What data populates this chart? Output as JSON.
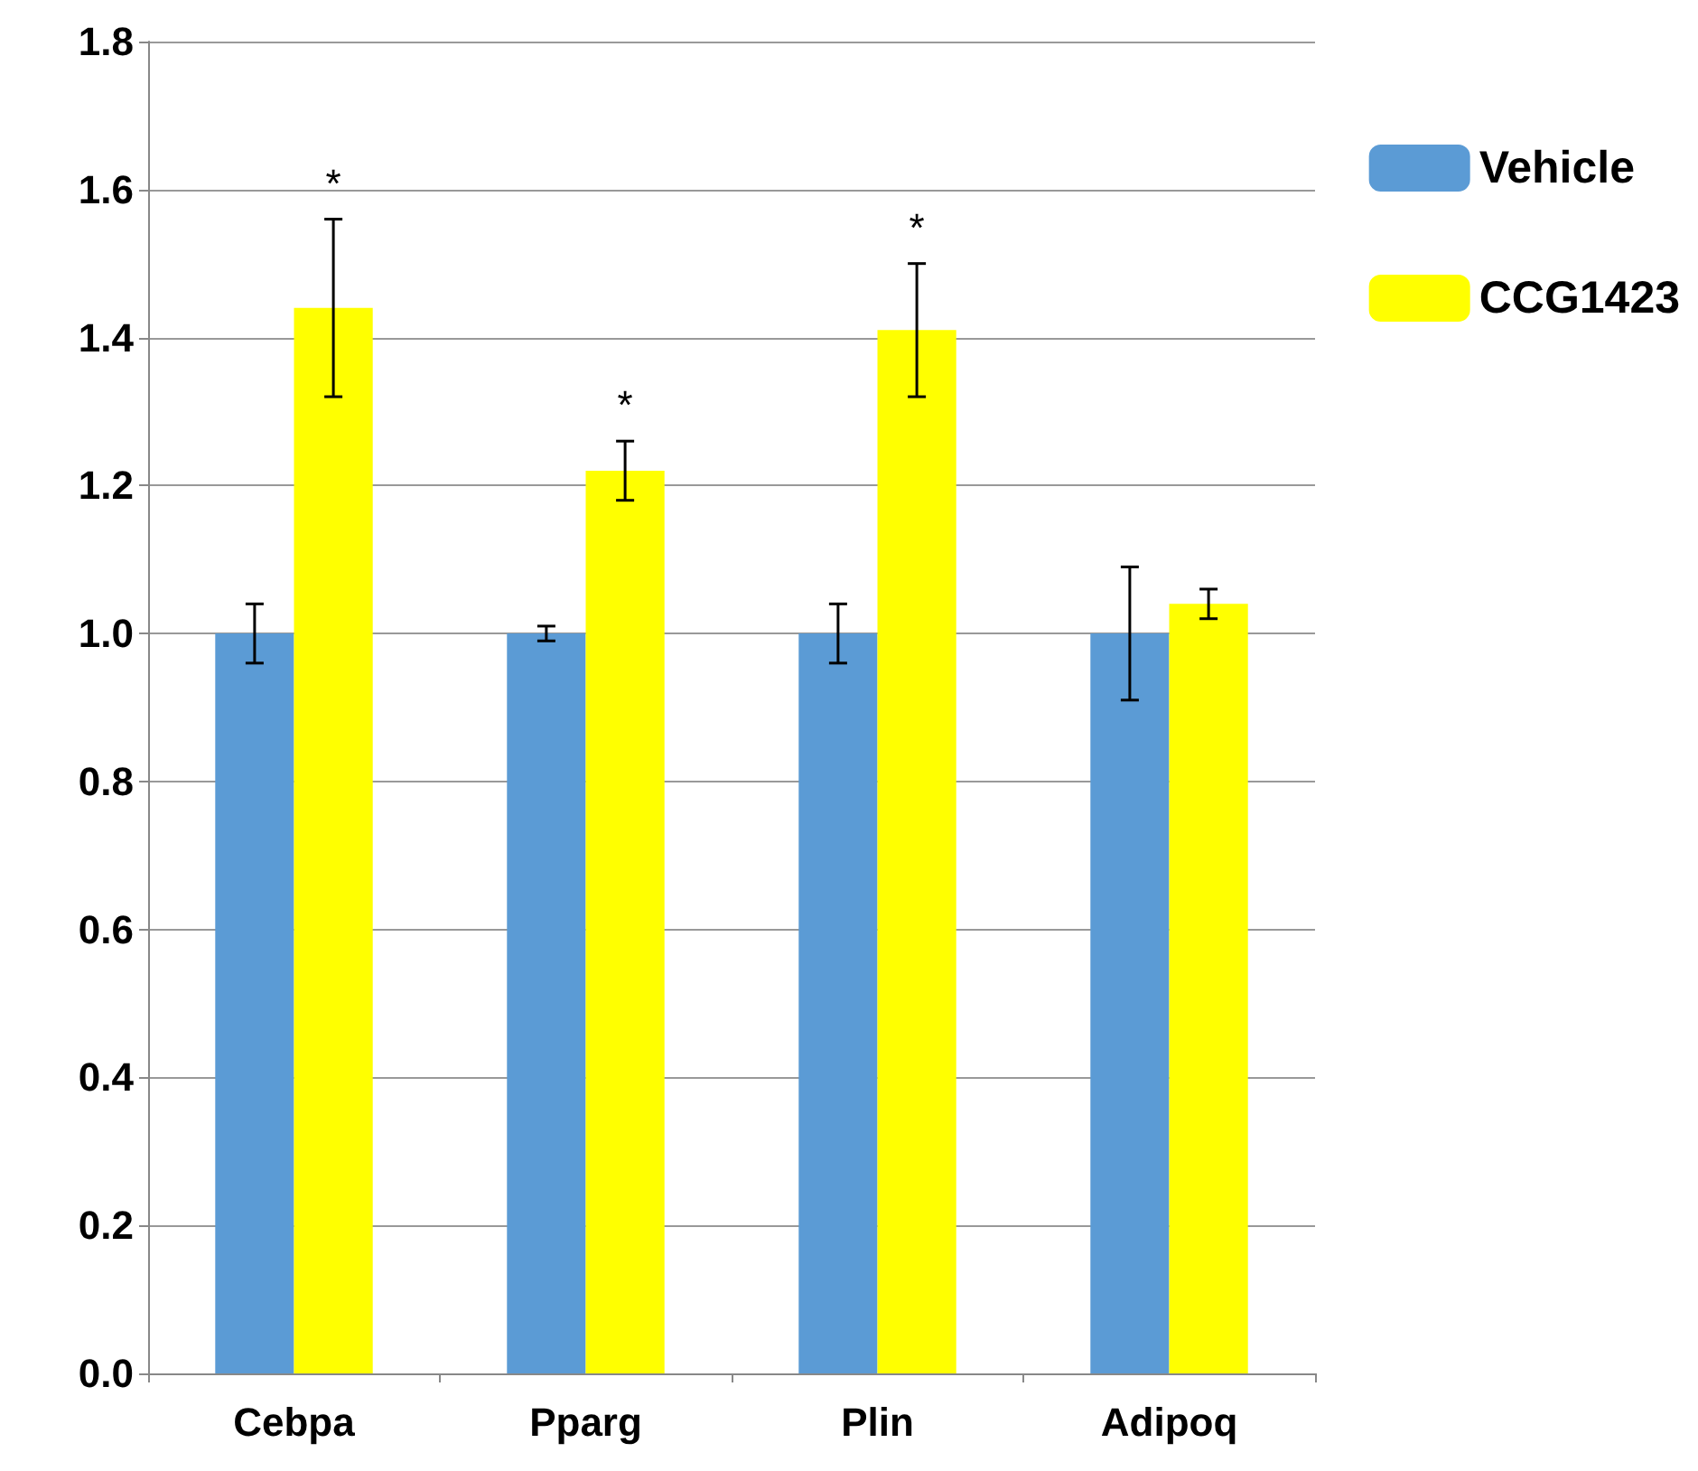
{
  "chart_data": {
    "type": "bar",
    "categories": [
      "Cebpa",
      "Pparg",
      "Plin",
      "Adipoq"
    ],
    "series": [
      {
        "name": "Vehicle",
        "color": "#5b9bd5",
        "values": [
          1.0,
          1.0,
          1.0,
          1.0
        ],
        "errors": [
          0.04,
          0.01,
          0.04,
          0.09
        ]
      },
      {
        "name": "CCG1423",
        "color": "#ffff00",
        "values": [
          1.44,
          1.22,
          1.41,
          1.04
        ],
        "errors": [
          0.12,
          0.04,
          0.09,
          0.02
        ]
      }
    ],
    "annotations": [
      {
        "text": "*",
        "x": "Cebpa",
        "y": 1.44
      },
      {
        "text": "*",
        "x": "Pparg",
        "y": 1.22
      },
      {
        "text": "*",
        "x": "Plin",
        "y": 1.41
      }
    ],
    "ylim": [
      0,
      1.8
    ],
    "yticks": [
      {
        "value": 0,
        "label": "0.0"
      },
      0.2,
      0.4,
      0.6,
      0.8,
      {
        "value": 1,
        "label": "1.0"
      },
      1.2,
      1.4,
      1.6,
      1.8
    ],
    "grid": "y",
    "legend": "right"
  }
}
